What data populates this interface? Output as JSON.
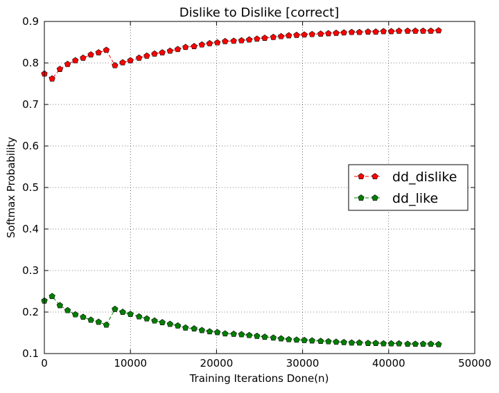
{
  "chart_data": {
    "type": "line",
    "title": "Dislike to Dislike [correct]",
    "xlabel": "Training Iterations Done(n)",
    "ylabel": "Softmax Probability",
    "xlim": [
      0,
      50000
    ],
    "ylim": [
      0.1,
      0.9
    ],
    "xticks": [
      0,
      10000,
      20000,
      30000,
      40000,
      50000
    ],
    "xtick_labels": [
      "0",
      "10000",
      "20000",
      "30000",
      "40000",
      "50000"
    ],
    "yticks": [
      0.1,
      0.2,
      0.3,
      0.4,
      0.5,
      0.6,
      0.7,
      0.8,
      0.9
    ],
    "ytick_labels": [
      "0.1",
      "0.2",
      "0.3",
      "0.4",
      "0.5",
      "0.6",
      "0.7",
      "0.8",
      "0.9"
    ],
    "grid": true,
    "legend_position": "center-right",
    "x": [
      0,
      900,
      1800,
      2700,
      3600,
      4500,
      5400,
      6300,
      7200,
      8200,
      9100,
      10000,
      11000,
      11900,
      12800,
      13700,
      14600,
      15500,
      16400,
      17400,
      18300,
      19200,
      20100,
      21000,
      22000,
      22900,
      23800,
      24700,
      25600,
      26600,
      27500,
      28400,
      29300,
      30200,
      31100,
      32100,
      33000,
      33900,
      34800,
      35700,
      36600,
      37600,
      38500,
      39400,
      40300,
      41200,
      42200,
      43100,
      44000,
      44900,
      45800
    ],
    "series": [
      {
        "name": "dd_dislike",
        "color": "#ff0000",
        "values": [
          0.774,
          0.762,
          0.785,
          0.797,
          0.806,
          0.812,
          0.82,
          0.825,
          0.831,
          0.794,
          0.801,
          0.806,
          0.812,
          0.817,
          0.822,
          0.825,
          0.829,
          0.833,
          0.838,
          0.84,
          0.844,
          0.847,
          0.849,
          0.852,
          0.853,
          0.854,
          0.856,
          0.858,
          0.86,
          0.862,
          0.864,
          0.866,
          0.867,
          0.868,
          0.869,
          0.87,
          0.871,
          0.872,
          0.873,
          0.874,
          0.874,
          0.875,
          0.875,
          0.876,
          0.876,
          0.877,
          0.877,
          0.877,
          0.877,
          0.877,
          0.878
        ]
      },
      {
        "name": "dd_like",
        "color": "#007f00",
        "values": [
          0.227,
          0.238,
          0.216,
          0.204,
          0.194,
          0.188,
          0.181,
          0.176,
          0.169,
          0.207,
          0.2,
          0.195,
          0.189,
          0.184,
          0.179,
          0.175,
          0.171,
          0.167,
          0.162,
          0.16,
          0.156,
          0.153,
          0.151,
          0.148,
          0.147,
          0.146,
          0.144,
          0.142,
          0.14,
          0.138,
          0.136,
          0.134,
          0.133,
          0.132,
          0.131,
          0.13,
          0.129,
          0.128,
          0.127,
          0.126,
          0.126,
          0.125,
          0.125,
          0.124,
          0.124,
          0.124,
          0.123,
          0.123,
          0.123,
          0.123,
          0.122
        ]
      }
    ]
  }
}
